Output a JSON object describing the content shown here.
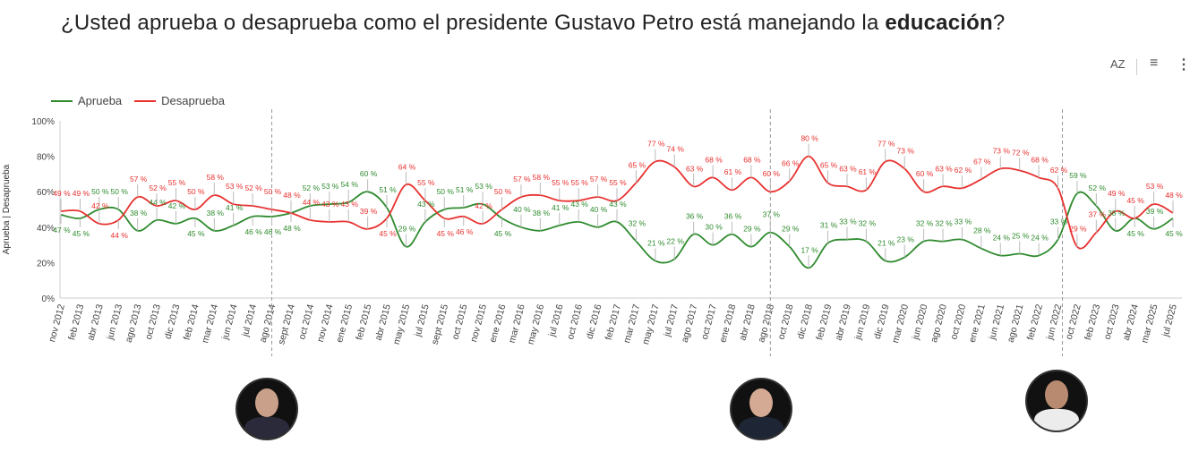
{
  "title": {
    "prefix": "¿Usted aprueba o desaprueba como el presidente Gustavo Petro está manejando la ",
    "bold": "educación",
    "suffix": "?"
  },
  "toolbar": {
    "sort_icon": "sort-az-icon",
    "filter_icon": "filter-icon",
    "more_icon": "more-vertical-icon",
    "sort_label": "AZ"
  },
  "chart_data": {
    "type": "line",
    "ylabel": "Aprueba | Desaprueba",
    "ylim": [
      0,
      100
    ],
    "yticks": [
      "0%",
      "20%",
      "40%",
      "60%",
      "80%",
      "100%"
    ],
    "legend": "top-left",
    "grid": false,
    "categories": [
      "nov 2012",
      "feb 2013",
      "abr 2013",
      "jun 2013",
      "ago 2013",
      "oct 2013",
      "dic 2013",
      "feb 2014",
      "mar 2014",
      "jun 2014",
      "jul 2014",
      "ago 2014",
      "sept 2014",
      "oct 2014",
      "nov 2014",
      "ene 2015",
      "feb 2015",
      "abr 2015",
      "may 2015",
      "jul 2015",
      "sept 2015",
      "oct 2015",
      "nov 2015",
      "ene 2016",
      "mar 2016",
      "may 2016",
      "jul 2016",
      "oct 2016",
      "dic 2016",
      "feb 2017",
      "mar 2017",
      "may 2017",
      "jul 2017",
      "ago 2017",
      "oct 2017",
      "ene 2018",
      "abr 2018",
      "ago 2018",
      "oct 2018",
      "dic 2018",
      "feb 2019",
      "abr 2019",
      "jun 2019",
      "dic 2019",
      "mar 2020",
      "jun 2020",
      "ago 2020",
      "oct 2020",
      "ene 2021",
      "jun 2021",
      "ago 2021",
      "feb 2022",
      "jun 2022",
      "oct 2022",
      "feb 2023",
      "oct 2023",
      "abr 2024",
      "mar 2025",
      "jul 2025"
    ],
    "series": [
      {
        "name": "Aprueba",
        "color": "#2e8b2e",
        "values": [
          47,
          45,
          50,
          50,
          38,
          44,
          42,
          45,
          38,
          41,
          46,
          46,
          48,
          52,
          53,
          54,
          60,
          51,
          29,
          43,
          50,
          51,
          53,
          45,
          40,
          38,
          41,
          43,
          40,
          43,
          32,
          21,
          22,
          36,
          30,
          36,
          29,
          37,
          29,
          17,
          31,
          33,
          32,
          21,
          23,
          32,
          32,
          33,
          28,
          24,
          25,
          24,
          33,
          59,
          52,
          38,
          45,
          39,
          45
        ]
      },
      {
        "name": "Desaprueba",
        "color": "#e8312f",
        "values": [
          49,
          49,
          42,
          44,
          57,
          52,
          55,
          50,
          58,
          53,
          52,
          50,
          48,
          44,
          43,
          43,
          39,
          45,
          64,
          55,
          45,
          46,
          42,
          50,
          57,
          58,
          55,
          55,
          57,
          55,
          65,
          77,
          74,
          63,
          68,
          61,
          68,
          60,
          66,
          80,
          65,
          63,
          61,
          77,
          73,
          60,
          63,
          62,
          67,
          73,
          72,
          68,
          62,
          29,
          37,
          49,
          45,
          53,
          48
        ]
      }
    ],
    "period_dividers": [
      "ago 2014",
      "ago 2018",
      "jun 2022"
    ],
    "value_suffix": " %"
  }
}
